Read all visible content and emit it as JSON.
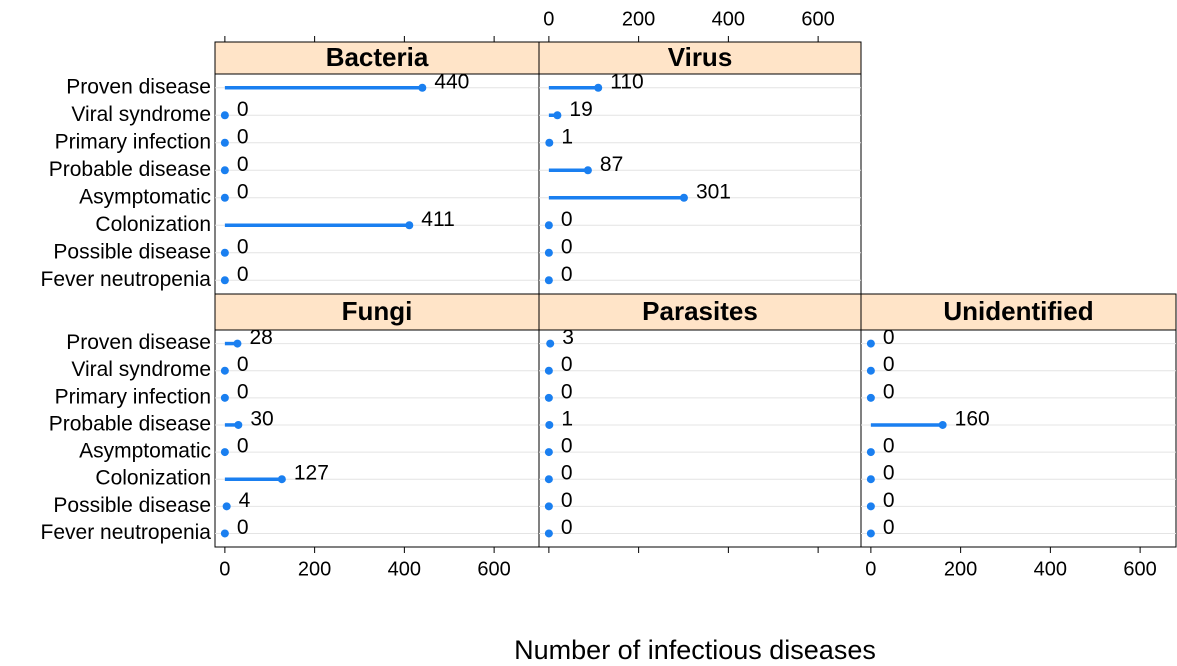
{
  "chart_data": {
    "type": "lollipop",
    "x_label": "Number of infectious diseases",
    "categories": [
      "Proven disease",
      "Viral syndrome",
      "Primary infection",
      "Probable disease",
      "Asymptomatic",
      "Colonization",
      "Possible disease",
      "Fever neutropenia"
    ],
    "panels": [
      {
        "title": "Bacteria",
        "values": [
          440,
          0,
          0,
          0,
          0,
          411,
          0,
          0
        ]
      },
      {
        "title": "Virus",
        "values": [
          110,
          19,
          1,
          87,
          301,
          0,
          0,
          0
        ]
      },
      {
        "title": "Fungi",
        "values": [
          28,
          0,
          0,
          30,
          0,
          127,
          4,
          0
        ]
      },
      {
        "title": "Parasites",
        "values": [
          3,
          0,
          0,
          1,
          0,
          0,
          0,
          0
        ]
      },
      {
        "title": "Unidentified",
        "values": [
          0,
          0,
          0,
          160,
          0,
          0,
          0,
          0
        ]
      }
    ],
    "color": "#1a7ff0",
    "strip_color": "#ffe4c8",
    "xlim": [
      -22,
      700
    ],
    "xticks": [
      0,
      200,
      400,
      600
    ],
    "grid": true
  }
}
